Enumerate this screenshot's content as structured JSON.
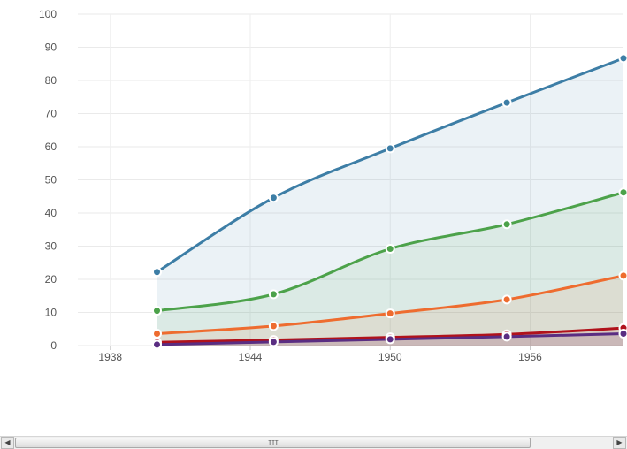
{
  "chart_data": {
    "type": "area",
    "x": [
      1940,
      1945,
      1950,
      1955,
      1960
    ],
    "xlim": [
      1936,
      1960
    ],
    "x_ticks": [
      "1938",
      "1944",
      "1950",
      "1956"
    ],
    "x_tick_values": [
      1938,
      1944,
      1950,
      1956
    ],
    "ylim": [
      0,
      100
    ],
    "y_ticks": [
      "0",
      "10",
      "20",
      "30",
      "40",
      "50",
      "60",
      "70",
      "80",
      "90",
      "100"
    ],
    "y_tick_values": [
      0,
      10,
      20,
      30,
      40,
      50,
      60,
      70,
      80,
      90,
      100
    ],
    "grid": true,
    "stacked": false,
    "series": [
      {
        "values": [
          22.2,
          44.6,
          59.5,
          73.3,
          86.7
        ],
        "color": "#3d7ea6"
      },
      {
        "values": [
          10.5,
          15.5,
          29.2,
          36.6,
          46.2
        ],
        "color": "#4ca24a"
      },
      {
        "values": [
          3.6,
          5.9,
          9.7,
          13.9,
          21.1
        ],
        "color": "#ee6c2f"
      },
      {
        "values": [
          1.0,
          1.7,
          2.5,
          3.4,
          5.3
        ],
        "color": "#b0121b"
      },
      {
        "values": [
          0.3,
          1.1,
          1.9,
          2.7,
          3.6
        ],
        "color": "#5a2d82"
      }
    ]
  },
  "scrollbar": {
    "left_arrow": "◀",
    "right_arrow": "▶",
    "grip": "III"
  }
}
